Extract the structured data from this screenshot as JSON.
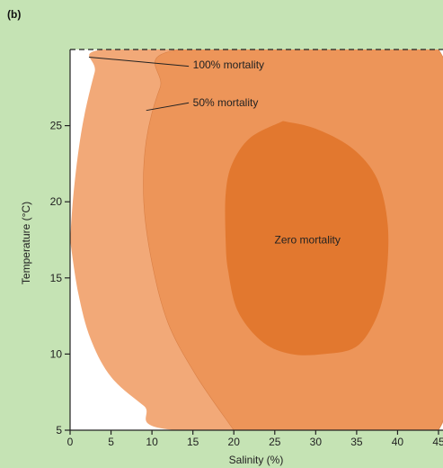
{
  "chart_data": {
    "type": "area",
    "panel_label": "(b)",
    "xlabel": "Salinity (%)",
    "ylabel": "Temperature (°C)",
    "xlim": [
      0,
      45
    ],
    "ylim": [
      5,
      30
    ],
    "x_ticks": [
      0,
      5,
      10,
      15,
      20,
      25,
      30,
      35,
      40,
      45
    ],
    "y_ticks": [
      5,
      10,
      15,
      20,
      25
    ],
    "colors": {
      "background": "#c5e3b4",
      "outer_region": "#f2a978",
      "middle_region": "#ed9559",
      "inner_region": "#e2782f",
      "outside_plot": "#ffffff",
      "axis": "#222222"
    },
    "regions": [
      {
        "label": "100% mortality",
        "boundary": [
          {
            "x": 0,
            "y": 17.5
          },
          {
            "x": 0.5,
            "y": 21
          },
          {
            "x": 1.5,
            "y": 25
          },
          {
            "x": 3,
            "y": 28.5
          },
          {
            "x": 4,
            "y": 30
          },
          {
            "x": 23,
            "y": 30
          },
          {
            "x": 42,
            "y": 30
          },
          {
            "x": 45,
            "y": 29
          },
          {
            "x": 45,
            "y": 5
          },
          {
            "x": 13,
            "y": 5
          },
          {
            "x": 9,
            "y": 6.6
          },
          {
            "x": 5,
            "y": 8.5
          },
          {
            "x": 2.5,
            "y": 11
          },
          {
            "x": 1,
            "y": 14
          },
          {
            "x": 0,
            "y": 17.5
          }
        ]
      },
      {
        "label": "50% mortality",
        "boundary": [
          {
            "x": 20,
            "y": 5
          },
          {
            "x": 15.5,
            "y": 8.5
          },
          {
            "x": 12,
            "y": 12
          },
          {
            "x": 10,
            "y": 16
          },
          {
            "x": 9,
            "y": 20
          },
          {
            "x": 9.3,
            "y": 24
          },
          {
            "x": 11,
            "y": 27.5
          },
          {
            "x": 13.5,
            "y": 30
          },
          {
            "x": 45,
            "y": 30
          },
          {
            "x": 45,
            "y": 5
          },
          {
            "x": 20,
            "y": 5
          }
        ]
      },
      {
        "label": "Zero mortality",
        "boundary": [
          {
            "x": 26,
            "y": 25.3
          },
          {
            "x": 30,
            "y": 24.8
          },
          {
            "x": 34.5,
            "y": 23.5
          },
          {
            "x": 37.5,
            "y": 21.5
          },
          {
            "x": 38.8,
            "y": 18.5
          },
          {
            "x": 38.6,
            "y": 15
          },
          {
            "x": 37.5,
            "y": 12.5
          },
          {
            "x": 35,
            "y": 10.5
          },
          {
            "x": 31,
            "y": 10
          },
          {
            "x": 27,
            "y": 10
          },
          {
            "x": 23.5,
            "y": 10.8
          },
          {
            "x": 20.5,
            "y": 12.8
          },
          {
            "x": 19.3,
            "y": 15.5
          },
          {
            "x": 19,
            "y": 17.5
          },
          {
            "x": 19,
            "y": 20.5
          },
          {
            "x": 19.8,
            "y": 22.5
          },
          {
            "x": 22,
            "y": 24.2
          },
          {
            "x": 26,
            "y": 25.3
          }
        ]
      }
    ],
    "annotations": [
      {
        "text": "100% mortality",
        "text_at": {
          "x": 15,
          "y": 29
        },
        "line_from": {
          "x": 2.3,
          "y": 29.5
        },
        "line_to": {
          "x": 14.5,
          "y": 28.9
        }
      },
      {
        "text": "50% mortality",
        "text_at": {
          "x": 15,
          "y": 26.5
        },
        "line_from": {
          "x": 9.3,
          "y": 26
        },
        "line_to": {
          "x": 14.5,
          "y": 26.5
        }
      },
      {
        "text": "Zero mortality",
        "text_at": {
          "x": 29,
          "y": 17.5
        }
      }
    ],
    "grid": false,
    "top_border_style": "dashed"
  }
}
